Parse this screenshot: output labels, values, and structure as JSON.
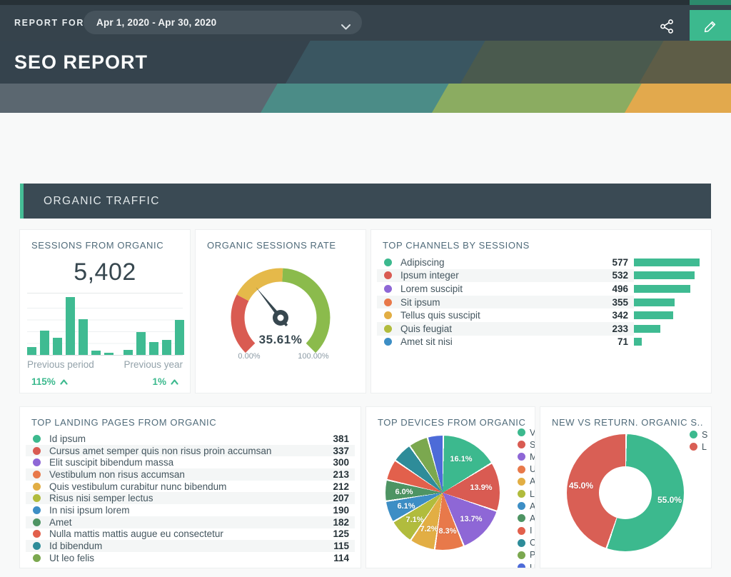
{
  "topbar": {
    "report_for_label": "REPORT FOR",
    "date_range": "Apr 1, 2020 - Apr 30, 2020"
  },
  "header": {
    "title": "SEO REPORT"
  },
  "section": {
    "title": "ORGANIC TRAFFIC"
  },
  "colors": {
    "accent_green": "#3CB98E",
    "bar_green": "#3FBB92",
    "dark_slate": "#37474F",
    "topbar_bg": "#36434C",
    "section_bg": "#3A4A54"
  },
  "cards": {
    "sessions": {
      "title": "SESSIONS FROM ORGANIC",
      "value": "5,402",
      "bar_groups": [
        {
          "label": "Previous period",
          "change": "115%",
          "direction": "up",
          "bars": [
            13,
            42,
            30,
            100,
            62,
            7,
            4
          ]
        },
        {
          "label": "Previous year",
          "change": "1%",
          "direction": "up",
          "bars": [
            9,
            40,
            22,
            26,
            60
          ]
        }
      ]
    },
    "gauge": {
      "title": "ORGANIC SESSIONS RATE",
      "value": 35.61,
      "value_label": "35.61%",
      "min_label": "0.00%",
      "max_label": "100.00%",
      "segments": [
        {
          "to": 27,
          "color": "#D95B52"
        },
        {
          "to": 51,
          "color": "#E5B94A"
        },
        {
          "to": 100,
          "color": "#8BBB4C"
        }
      ]
    },
    "channels": {
      "title": "TOP CHANNELS BY SESSIONS",
      "items": [
        {
          "label": "Adipiscing",
          "value": 577,
          "color": "#3CB98E"
        },
        {
          "label": "Ipsum integer",
          "value": 532,
          "color": "#D95B52"
        },
        {
          "label": "Lorem suscipit",
          "value": 496,
          "color": "#8E67D6"
        },
        {
          "label": "Sit ipsum",
          "value": 355,
          "color": "#E8794A"
        },
        {
          "label": "Tellus quis suscipit",
          "value": 342,
          "color": "#E2AE44"
        },
        {
          "label": "Quis feugiat",
          "value": 233,
          "color": "#B1BC3D"
        },
        {
          "label": "Amet sit nisi",
          "value": 71,
          "color": "#3D8EC5"
        }
      ]
    },
    "landing": {
      "title": "TOP LANDING PAGES FROM ORGANIC",
      "items": [
        {
          "label": "Id ipsum",
          "value": 381,
          "color": "#3CB98E"
        },
        {
          "label": "Cursus amet semper quis non risus proin accumsan",
          "value": 337,
          "color": "#D95B52"
        },
        {
          "label": "Elit suscipit bibendum massa",
          "value": 300,
          "color": "#8E67D6"
        },
        {
          "label": "Vestibulum non risus accumsan",
          "value": 213,
          "color": "#E8794A"
        },
        {
          "label": "Quis vestibulum curabitur nunc bibendum",
          "value": 212,
          "color": "#E2AE44"
        },
        {
          "label": "Risus nisi semper lectus",
          "value": 207,
          "color": "#B1BC3D"
        },
        {
          "label": "In nisi ipsum lorem",
          "value": 190,
          "color": "#3D8EC5"
        },
        {
          "label": "Amet",
          "value": 182,
          "color": "#4E9463"
        },
        {
          "label": "Nulla mattis mattis augue eu consectetur",
          "value": 125,
          "color": "#E2604C"
        },
        {
          "label": "Id bibendum",
          "value": 115,
          "color": "#2E8C99"
        },
        {
          "label": "Ut leo felis",
          "value": 114,
          "color": "#7BA84F"
        }
      ]
    },
    "devices": {
      "title": "TOP DEVICES FROM ORGANIC",
      "slices": [
        {
          "pct": 16.1,
          "label": "16.1%",
          "color": "#3CB98E",
          "labeled": true
        },
        {
          "pct": 13.9,
          "label": "13.9%",
          "color": "#D95B52",
          "labeled": true
        },
        {
          "pct": 13.7,
          "label": "13.7%",
          "color": "#8E67D6",
          "labeled": true
        },
        {
          "pct": 8.3,
          "label": "8.3%",
          "color": "#E8794A",
          "labeled": true
        },
        {
          "pct": 7.2,
          "label": "7.2%",
          "color": "#E2AE44",
          "labeled": true
        },
        {
          "pct": 7.1,
          "label": "7.1%",
          "color": "#B1BC3D",
          "labeled": true
        },
        {
          "pct": 6.1,
          "label": "6.1%",
          "color": "#3D8EC5",
          "labeled": true
        },
        {
          "pct": 6.0,
          "label": "6.0%",
          "color": "#4E9463",
          "labeled": true
        },
        {
          "pct": 5.9,
          "label": "",
          "color": "#E2604C",
          "labeled": false
        },
        {
          "pct": 5.7,
          "label": "",
          "color": "#2E8C99",
          "labeled": false
        },
        {
          "pct": 5.5,
          "label": "",
          "color": "#7BA84F",
          "labeled": false
        },
        {
          "pct": 4.5,
          "label": "",
          "color": "#4D6BD8",
          "labeled": false
        }
      ],
      "legend": [
        "V",
        "S",
        "M",
        "U",
        "A",
        "L",
        "A",
        "A",
        "I",
        "C",
        "P",
        "U"
      ]
    },
    "new_vs_returning": {
      "title": "NEW VS RETURN. ORGANIC S...",
      "slices": [
        {
          "pct": 55.0,
          "label": "55.0%",
          "color": "#3CB98E",
          "legend": "S"
        },
        {
          "pct": 45.0,
          "label": "45.0%",
          "color": "#D95F55",
          "legend": "L"
        }
      ]
    }
  },
  "chart_data": [
    {
      "type": "bar",
      "title": "SESSIONS FROM ORGANIC",
      "value_total": 5402,
      "series": [
        {
          "name": "Previous period",
          "values_relative_pct": [
            13,
            42,
            30,
            100,
            62,
            7,
            4
          ],
          "change": "115%",
          "direction": "up"
        },
        {
          "name": "Previous year",
          "values_relative_pct": [
            9,
            40,
            22,
            26,
            60
          ],
          "change": "1%",
          "direction": "up"
        }
      ],
      "ylim": [
        0,
        100
      ],
      "grid": true
    },
    {
      "type": "gauge",
      "title": "ORGANIC SESSIONS RATE",
      "value": 35.61,
      "min": 0,
      "max": 100,
      "min_label": "0.00%",
      "max_label": "100.00%",
      "segments": [
        {
          "from": 0,
          "to": 27,
          "color": "#D95B52"
        },
        {
          "from": 27,
          "to": 51,
          "color": "#E5B94A"
        },
        {
          "from": 51,
          "to": 100,
          "color": "#8BBB4C"
        }
      ]
    },
    {
      "type": "bar",
      "title": "TOP CHANNELS BY SESSIONS",
      "orientation": "horizontal",
      "categories": [
        "Adipiscing",
        "Ipsum integer",
        "Lorem suscipit",
        "Sit ipsum",
        "Tellus quis suscipit",
        "Quis feugiat",
        "Amet sit nisi"
      ],
      "values": [
        577,
        532,
        496,
        355,
        342,
        233,
        71
      ]
    },
    {
      "type": "table",
      "title": "TOP LANDING PAGES FROM ORGANIC",
      "categories": [
        "Id ipsum",
        "Cursus amet semper quis non risus proin accumsan",
        "Elit suscipit bibendum massa",
        "Vestibulum non risus accumsan",
        "Quis vestibulum curabitur nunc bibendum",
        "Risus nisi semper lectus",
        "In nisi ipsum lorem",
        "Amet",
        "Nulla mattis mattis augue eu consectetur",
        "Id bibendum",
        "Ut leo felis"
      ],
      "values": [
        381,
        337,
        300,
        213,
        212,
        207,
        190,
        182,
        125,
        115,
        114
      ]
    },
    {
      "type": "pie",
      "title": "TOP DEVICES FROM ORGANIC",
      "values": [
        16.1,
        13.9,
        13.7,
        8.3,
        7.2,
        7.1,
        6.1,
        6.0,
        5.9,
        5.7,
        5.5,
        4.5
      ],
      "labels_shown": [
        "16.1%",
        "13.9%",
        "13.7%",
        "8.3%",
        "7.2%",
        "7.1%",
        "6.1%",
        "6.0%"
      ],
      "legend_position": "right",
      "legend_truncated": true
    },
    {
      "type": "pie",
      "subtype": "donut",
      "title": "NEW VS RETURN. ORGANIC S...",
      "values": [
        55.0,
        45.0
      ],
      "labels_shown": [
        "55.0%",
        "45.0%"
      ],
      "legend_position": "right",
      "legend_truncated": true
    }
  ]
}
